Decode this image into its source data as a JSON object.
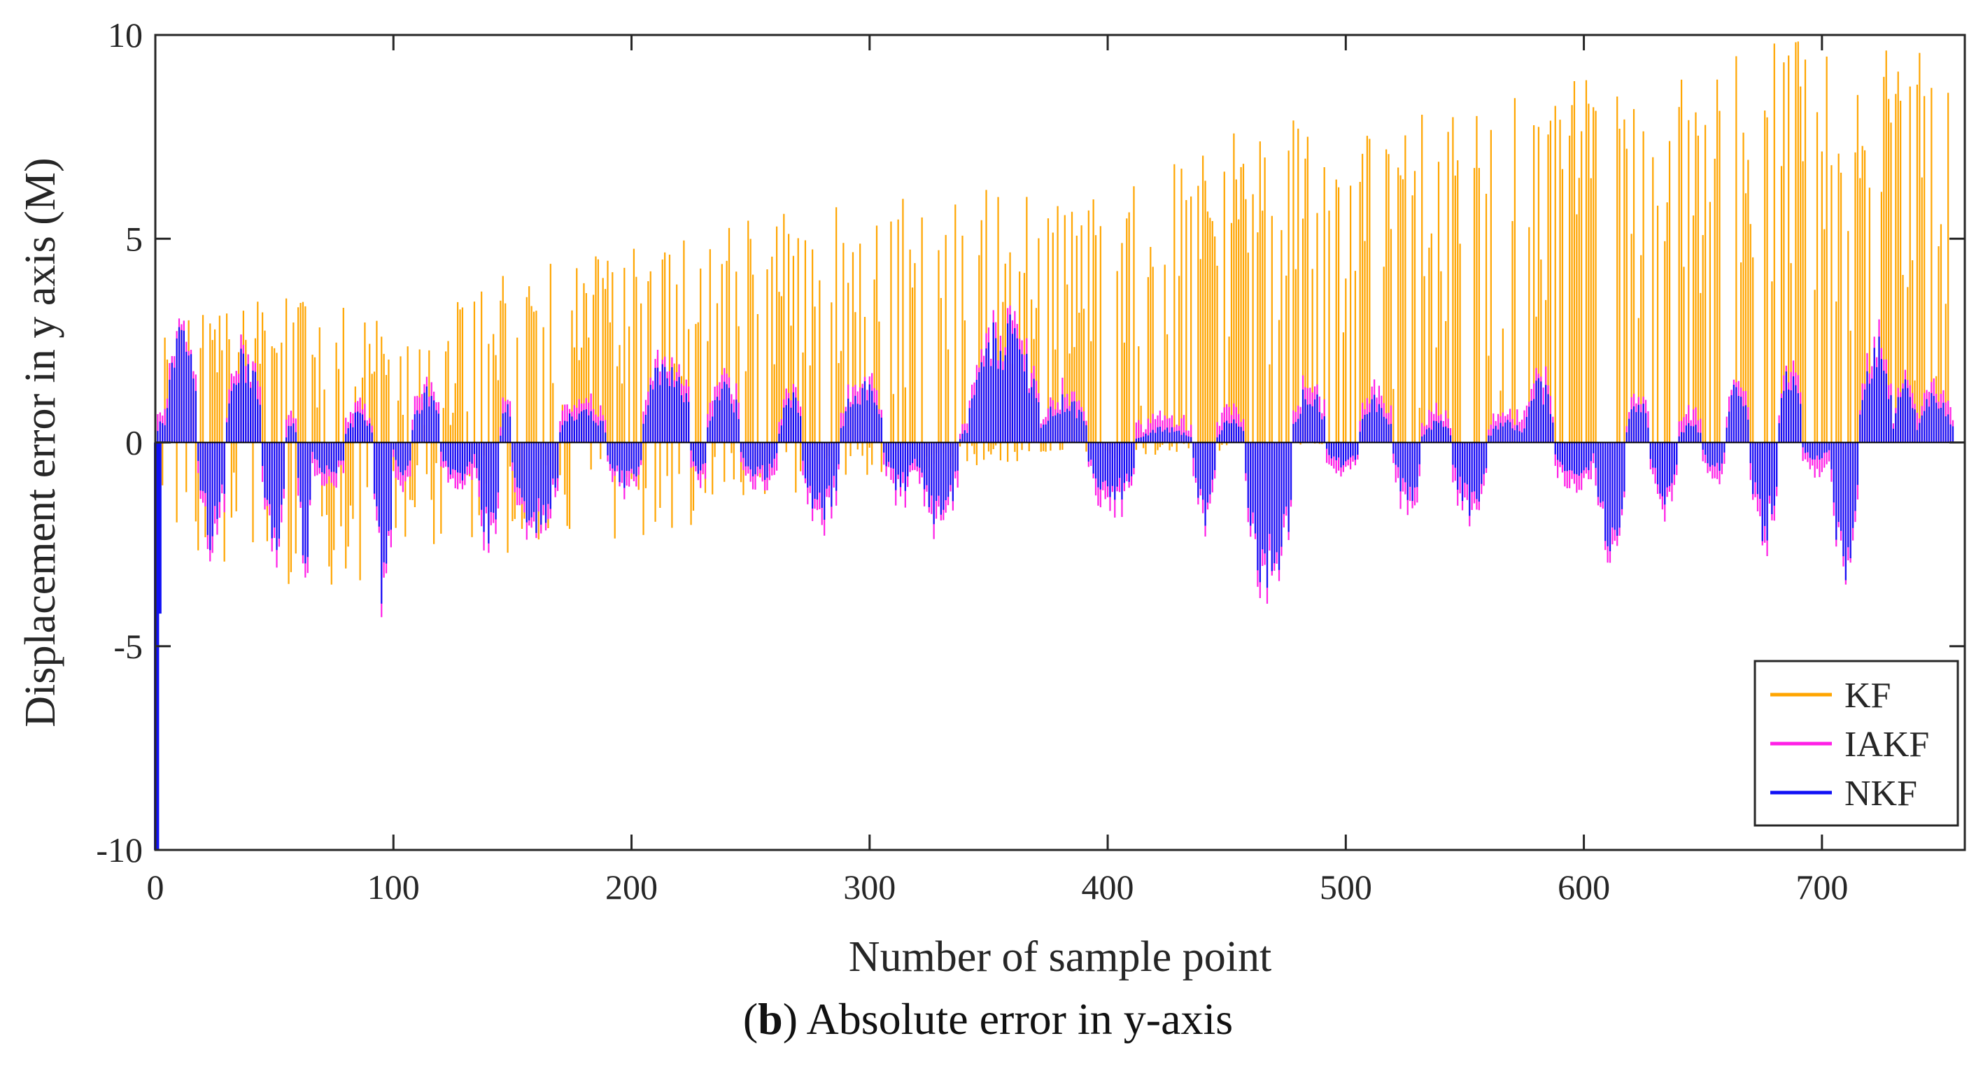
{
  "chart_data": {
    "type": "bar",
    "xlabel": "Number of sample point",
    "ylabel": "Displacement error in y axis (M)",
    "xlim": [
      0,
      760
    ],
    "ylim": [
      -10,
      10
    ],
    "x_ticks": [
      0,
      100,
      200,
      300,
      400,
      500,
      600,
      700
    ],
    "x_tick_labels": [
      "0",
      "100",
      "200",
      "300",
      "400",
      "500",
      "600",
      "700"
    ],
    "y_ticks": [
      -10,
      -5,
      0,
      5,
      10
    ],
    "y_tick_labels": [
      "-10",
      "-5",
      "0",
      "5",
      "10"
    ],
    "legend_position": "bottom-right",
    "n_samples": 756,
    "series": [
      {
        "name": "KF",
        "color": "#FFA500",
        "note": "per-sample error; envelope shown by piecewise-linear peaks",
        "positive_envelope": [
          [
            0,
            2.8
          ],
          [
            50,
            3.8
          ],
          [
            100,
            3.0
          ],
          [
            150,
            4.2
          ],
          [
            200,
            5.0
          ],
          [
            250,
            5.6
          ],
          [
            300,
            6.0
          ],
          [
            350,
            6.5
          ],
          [
            400,
            6.0
          ],
          [
            450,
            7.8
          ],
          [
            500,
            8.0
          ],
          [
            550,
            8.2
          ],
          [
            600,
            9.0
          ],
          [
            650,
            9.4
          ],
          [
            680,
            10.0
          ],
          [
            700,
            10.0
          ],
          [
            730,
            9.6
          ],
          [
            750,
            10.0
          ]
        ],
        "negative_envelope": [
          [
            0,
            -3.9
          ],
          [
            40,
            -3.3
          ],
          [
            80,
            -3.8
          ],
          [
            100,
            -2.6
          ],
          [
            150,
            -2.8
          ],
          [
            200,
            -2.6
          ],
          [
            250,
            -1.6
          ],
          [
            300,
            -0.8
          ],
          [
            350,
            -0.6
          ],
          [
            400,
            -0.4
          ],
          [
            450,
            -0.2
          ],
          [
            500,
            0.0
          ],
          [
            750,
            0.0
          ]
        ]
      },
      {
        "name": "IAKF",
        "color": "#FF1FE6",
        "note": "slightly larger than NKF at each segment",
        "extra_over_nkf": 0.35
      },
      {
        "name": "NKF",
        "color": "#1010F5",
        "segments": [
          [
            0,
            5,
            0.6
          ],
          [
            5,
            18,
            3.2
          ],
          [
            18,
            30,
            -2.7
          ],
          [
            30,
            45,
            2.4
          ],
          [
            45,
            55,
            -2.8
          ],
          [
            55,
            60,
            0.6
          ],
          [
            60,
            66,
            -3.3
          ],
          [
            66,
            80,
            -1.0
          ],
          [
            80,
            92,
            0.8
          ],
          [
            92,
            100,
            -4.5
          ],
          [
            100,
            108,
            -1.0
          ],
          [
            108,
            120,
            1.4
          ],
          [
            120,
            135,
            -1.0
          ],
          [
            135,
            145,
            -2.6
          ],
          [
            145,
            150,
            1.0
          ],
          [
            150,
            170,
            -2.3
          ],
          [
            170,
            190,
            1.0
          ],
          [
            190,
            205,
            -1.2
          ],
          [
            205,
            225,
            2.3
          ],
          [
            225,
            232,
            -0.8
          ],
          [
            232,
            246,
            1.7
          ],
          [
            246,
            262,
            -1.0
          ],
          [
            262,
            272,
            1.3
          ],
          [
            272,
            288,
            -2.0
          ],
          [
            288,
            306,
            1.6
          ],
          [
            306,
            320,
            -1.3
          ],
          [
            320,
            338,
            -2.1
          ],
          [
            338,
            342,
            0.3
          ],
          [
            342,
            372,
            3.2
          ],
          [
            372,
            392,
            1.2
          ],
          [
            392,
            412,
            -1.6
          ],
          [
            412,
            436,
            0.4
          ],
          [
            436,
            446,
            -2.2
          ],
          [
            446,
            458,
            0.6
          ],
          [
            458,
            478,
            -4.0
          ],
          [
            478,
            492,
            1.6
          ],
          [
            492,
            506,
            -0.7
          ],
          [
            506,
            520,
            1.2
          ],
          [
            520,
            532,
            -1.6
          ],
          [
            532,
            545,
            0.6
          ],
          [
            545,
            560,
            -1.9
          ],
          [
            560,
            575,
            0.6
          ],
          [
            575,
            588,
            1.6
          ],
          [
            588,
            605,
            -1.0
          ],
          [
            605,
            618,
            -2.7
          ],
          [
            618,
            628,
            1.1
          ],
          [
            628,
            640,
            -1.6
          ],
          [
            640,
            650,
            0.5
          ],
          [
            650,
            660,
            -0.8
          ],
          [
            660,
            670,
            1.6
          ],
          [
            670,
            682,
            -2.5
          ],
          [
            682,
            692,
            2.0
          ],
          [
            692,
            704,
            -0.5
          ],
          [
            704,
            716,
            -3.5
          ],
          [
            716,
            730,
            2.8
          ],
          [
            730,
            740,
            1.6
          ],
          [
            740,
            756,
            1.3
          ]
        ],
        "initial_spike": [
          [
            0,
            -10.0
          ],
          [
            1,
            -10.0
          ],
          [
            2,
            -4.2
          ]
        ]
      }
    ]
  },
  "caption": {
    "label": "b",
    "text": " Absolute error in y-axis"
  }
}
